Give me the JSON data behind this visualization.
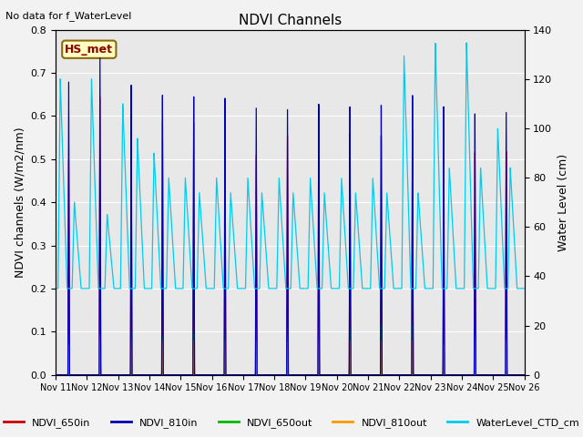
{
  "title": "NDVI Channels",
  "top_left_text": "No data for f_WaterLevel",
  "annotation_text": "HS_met",
  "ylabel_left": "NDVI channels (W/m2/nm)",
  "ylabel_right": "Water Level (cm)",
  "ylim_left": [
    0.0,
    0.8
  ],
  "ylim_right": [
    0,
    140
  ],
  "yticks_left": [
    0.0,
    0.1,
    0.2,
    0.3,
    0.4,
    0.5,
    0.6,
    0.7,
    0.8
  ],
  "yticks_right": [
    0,
    20,
    40,
    60,
    80,
    100,
    120,
    140
  ],
  "xtick_labels": [
    "Nov 11",
    "Nov 12",
    "Nov 13",
    "Nov 14",
    "Nov 15",
    "Nov 16",
    "Nov 17",
    "Nov 18",
    "Nov 19",
    "Nov 20",
    "Nov 21",
    "Nov 22",
    "Nov 23",
    "Nov 24",
    "Nov 25",
    "Nov 26"
  ],
  "colors": {
    "NDVI_650in": "#cc0000",
    "NDVI_810in": "#0000bb",
    "NDVI_650out": "#00bb00",
    "NDVI_810out": "#ff9900",
    "WaterLevel_CTD_cm": "#00ccee"
  },
  "background_color": "#e8e8e8",
  "legend_labels": [
    "NDVI_650in",
    "NDVI_810in",
    "NDVI_650out",
    "NDVI_810out",
    "WaterLevel_CTD_cm"
  ]
}
